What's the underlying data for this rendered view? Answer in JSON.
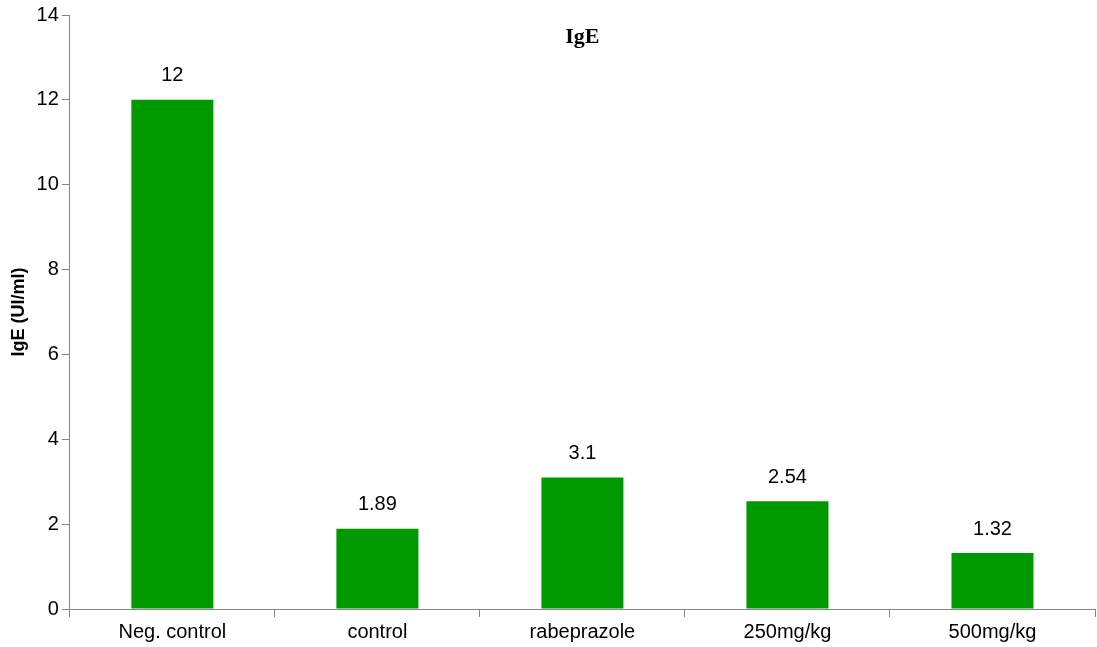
{
  "chart_data": {
    "type": "bar",
    "title": "IgE",
    "ylabel": "IgE (UI/ml)",
    "categories": [
      "Neg. control",
      "control",
      "rabeprazole",
      "250mg/kg",
      "500mg/kg"
    ],
    "values": [
      12,
      1.89,
      3.1,
      2.54,
      1.32
    ],
    "color": "#009900",
    "ylim": [
      0,
      14
    ],
    "yticks": [
      0,
      2,
      4,
      6,
      8,
      10,
      12,
      14
    ],
    "grid": false,
    "legend": false,
    "data_labels": true
  }
}
